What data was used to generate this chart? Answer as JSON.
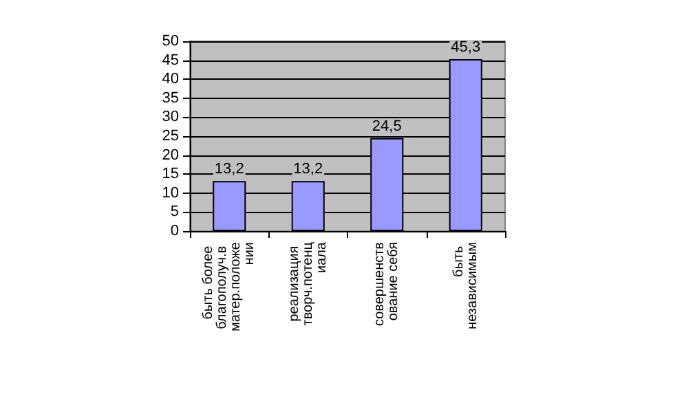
{
  "chart_data": {
    "type": "bar",
    "categories": [
      "быть более благополуч.в матер.положении",
      "реализация творч.потенциала",
      "совершенствование себя",
      "быть независимым"
    ],
    "values": [
      13.2,
      13.2,
      24.5,
      45.3
    ],
    "value_labels": [
      "13,2",
      "13,2",
      "24,5",
      "45,3"
    ],
    "color": "#9999ff",
    "ylim": [
      0,
      50
    ],
    "yticks": [
      0,
      5,
      10,
      15,
      20,
      25,
      30,
      35,
      40,
      45,
      50
    ],
    "grid": "y"
  }
}
